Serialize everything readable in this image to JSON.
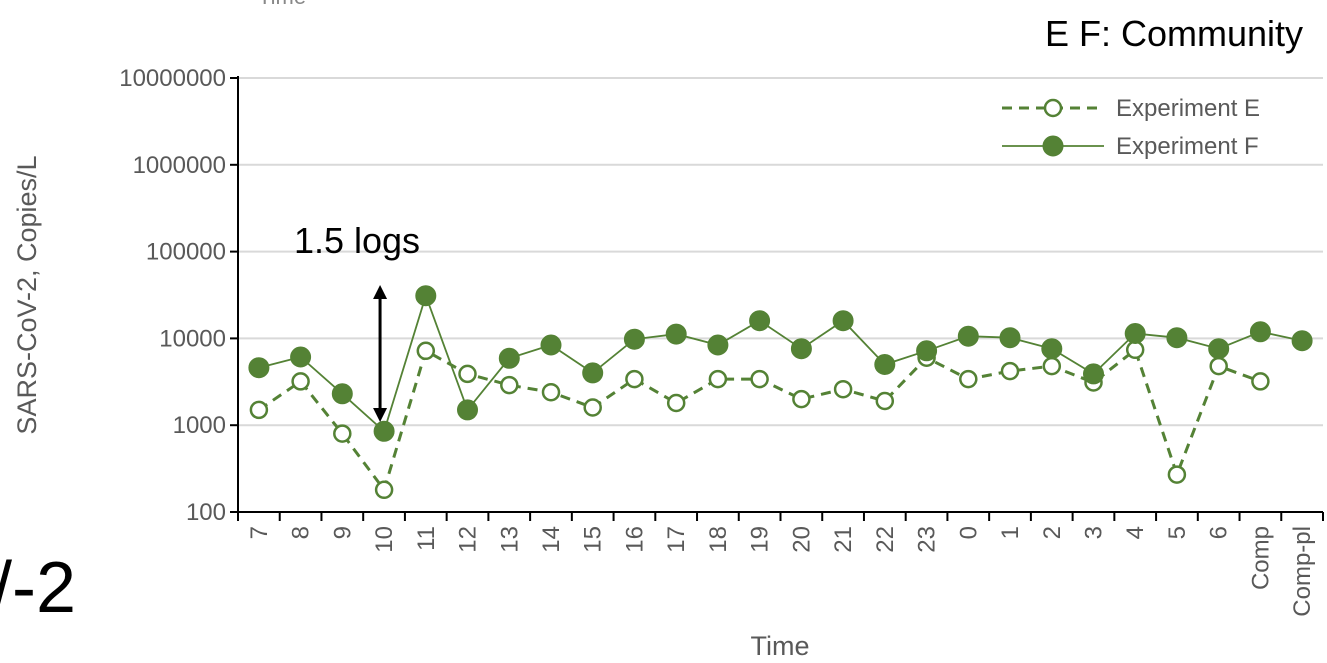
{
  "panel_label": "E F: Community",
  "annotation": "1.5 logs",
  "background_fragment": "/-2",
  "top_fragment": "Time",
  "colors": {
    "series": "#548235",
    "axis": "#000000",
    "grid": "#d9d9d9",
    "text": "#595959"
  },
  "chart_data": {
    "type": "line",
    "title": "",
    "xlabel": "Time",
    "ylabel": "SARS-CoV-2, Copies/L",
    "yscale": "log",
    "ylim": [
      100,
      10000000
    ],
    "yticks": [
      "100",
      "1000",
      "10000",
      "100000",
      "1000000",
      "10000000"
    ],
    "grid": true,
    "legend": "top-right",
    "categories": [
      "7",
      "8",
      "9",
      "10",
      "11",
      "12",
      "13",
      "14",
      "15",
      "16",
      "17",
      "18",
      "19",
      "20",
      "21",
      "22",
      "23",
      "0",
      "1",
      "2",
      "3",
      "4",
      "5",
      "6",
      "Comp",
      "Comp-pl"
    ],
    "series": [
      {
        "name": "Experiment E",
        "style": "dashed-open-circle",
        "values": [
          1500,
          3200,
          800,
          180,
          7200,
          3900,
          2900,
          2400,
          1600,
          3400,
          1800,
          3400,
          3400,
          2000,
          2600,
          1900,
          6000,
          3400,
          4200,
          4800,
          3100,
          7400,
          270,
          4800,
          3200,
          null
        ]
      },
      {
        "name": "Experiment F",
        "style": "solid-filled-circle",
        "values": [
          4600,
          6100,
          2300,
          850,
          31000,
          1500,
          5900,
          8400,
          4000,
          9800,
          11200,
          8400,
          16000,
          7600,
          16000,
          5000,
          7200,
          10600,
          10200,
          7600,
          3900,
          11400,
          10200,
          7600,
          11900,
          9400
        ]
      }
    ]
  }
}
